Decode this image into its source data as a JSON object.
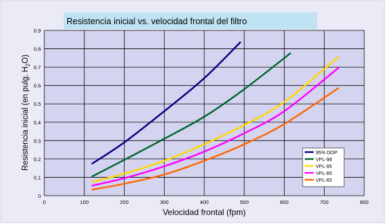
{
  "chart_data": {
    "type": "line",
    "title": "Resistencia inicial vs. velocidad frontal del filtro",
    "xlabel": "Velocidad frontal (fpm)",
    "ylabel_parts": [
      "Resistencia inicial (en pulg. H",
      "2",
      "O)"
    ],
    "xlim": [
      0,
      800
    ],
    "ylim": [
      0,
      0.9
    ],
    "x_ticks": [
      "0",
      "100",
      "200",
      "300",
      "400",
      "500",
      "600",
      "700",
      "800"
    ],
    "y_ticks": [
      "0",
      "0.1",
      "0.2",
      "0.3",
      "0.4",
      "0.5",
      "0.6",
      "0.7",
      "0.8",
      "0.9"
    ],
    "grid": true,
    "legend_position": "bottom-right",
    "colors": {
      "page_background": "#ffffff",
      "frame_background": "#ebebf7",
      "plot_background": "#d4d4f0",
      "title_background": "#bfe3f3",
      "grid": "#000000"
    },
    "series": [
      {
        "name": "95% DOP",
        "color": "#000080",
        "x": [
          120,
          200,
          300,
          400,
          490
        ],
        "y": [
          0.175,
          0.29,
          0.46,
          0.64,
          0.835
        ]
      },
      {
        "name": "VPL-98",
        "color": "#006633",
        "x": [
          120,
          200,
          300,
          400,
          500,
          615
        ],
        "y": [
          0.105,
          0.195,
          0.31,
          0.43,
          0.58,
          0.775
        ]
      },
      {
        "name": "VPL-95",
        "color": "#ffd700",
        "x": [
          120,
          200,
          300,
          400,
          500,
          600,
          735
        ],
        "y": [
          0.075,
          0.12,
          0.19,
          0.28,
          0.385,
          0.51,
          0.755
        ]
      },
      {
        "name": "VPL-85",
        "color": "#ff00ff",
        "x": [
          120,
          200,
          300,
          400,
          500,
          600,
          735
        ],
        "y": [
          0.055,
          0.095,
          0.16,
          0.24,
          0.34,
          0.46,
          0.695
        ]
      },
      {
        "name": "VPL-65",
        "color": "#ff6600",
        "x": [
          120,
          200,
          300,
          400,
          500,
          600,
          735
        ],
        "y": [
          0.033,
          0.065,
          0.115,
          0.19,
          0.28,
          0.39,
          0.585
        ]
      }
    ]
  }
}
